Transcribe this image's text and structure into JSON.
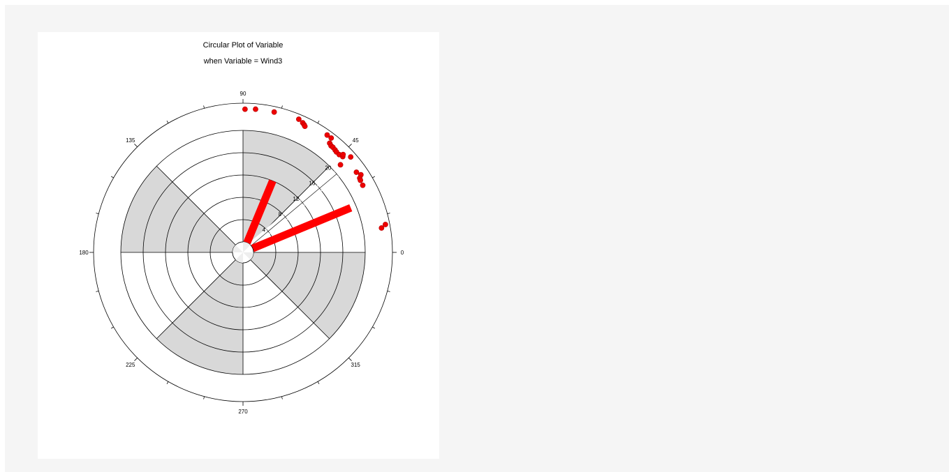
{
  "chart_data": {
    "type": "polar",
    "title": "Circular Plot of Variable",
    "subtitle": "when Variable = Wind3",
    "angle_unit": "degrees",
    "angle_ticks": [
      0,
      45,
      90,
      135,
      180,
      225,
      270,
      315
    ],
    "angle_minor_step": 15,
    "radial_ticks": [
      0,
      4,
      8,
      12,
      16,
      20
    ],
    "radial_max": 20,
    "shaded_sectors": [
      [
        45,
        90
      ],
      [
        135,
        180
      ],
      [
        225,
        270
      ],
      [
        315,
        360
      ]
    ],
    "grid": true,
    "bars": [
      {
        "angle": 22.5,
        "value": 19
      },
      {
        "angle": 67.5,
        "value": 12
      }
    ],
    "points": [
      {
        "angle": 89.2,
        "r": 23.8
      },
      {
        "angle": 85.0,
        "r": 23.9
      },
      {
        "angle": 77.5,
        "r": 23.9
      },
      {
        "angle": 67.3,
        "r": 24.0
      },
      {
        "angle": 65.3,
        "r": 23.7
      },
      {
        "angle": 64.5,
        "r": 23.5
      },
      {
        "angle": 63.9,
        "r": 23.3
      },
      {
        "angle": 54.4,
        "r": 24.0
      },
      {
        "angle": 52.4,
        "r": 24.0
      },
      {
        "angle": 51.6,
        "r": 23.1
      },
      {
        "angle": 50.5,
        "r": 22.9
      },
      {
        "angle": 49.5,
        "r": 22.9
      },
      {
        "angle": 48.1,
        "r": 22.8
      },
      {
        "angle": 47.1,
        "r": 22.7
      },
      {
        "angle": 45.5,
        "r": 22.7
      },
      {
        "angle": 43.9,
        "r": 22.9
      },
      {
        "angle": 44.4,
        "r": 23.2
      },
      {
        "angle": 41.6,
        "r": 23.9
      },
      {
        "angle": 42.0,
        "r": 21.6
      },
      {
        "angle": 35.3,
        "r": 23.0
      },
      {
        "angle": 33.4,
        "r": 23.4
      },
      {
        "angle": 32.5,
        "r": 22.9
      },
      {
        "angle": 31.6,
        "r": 22.8
      },
      {
        "angle": 29.3,
        "r": 22.7
      },
      {
        "angle": 11.1,
        "r": 24.1
      },
      {
        "angle": 10.0,
        "r": 23.3
      }
    ],
    "colors": {
      "bar": "#ff0000",
      "point": "#ee0000",
      "shade": "#d8d8d8",
      "grid": "#000000"
    }
  }
}
